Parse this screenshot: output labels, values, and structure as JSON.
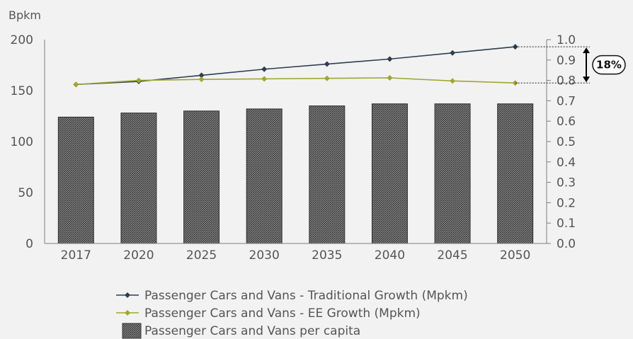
{
  "chart_data": {
    "type": "bar",
    "y_unit_label": "Bpkm",
    "categories": [
      "2017",
      "2020",
      "2025",
      "2030",
      "2035",
      "2040",
      "2045",
      "2050"
    ],
    "ylim": [
      0,
      200
    ],
    "y_ticks": [
      "0",
      "50",
      "100",
      "150",
      "200"
    ],
    "y2lim": [
      0,
      1.0
    ],
    "y2_ticks": [
      "0.0",
      "0.1",
      "0.2",
      "0.3",
      "0.4",
      "0.5",
      "0.6",
      "0.7",
      "0.8",
      "0.9",
      "1.0"
    ],
    "grid": false,
    "legend_placement": "bottom",
    "bar_series": {
      "name": "Passenger Cars and Vans per capita",
      "axis": "right",
      "values": [
        0.62,
        0.64,
        0.65,
        0.66,
        0.675,
        0.685,
        0.685,
        0.685
      ]
    },
    "line_series": [
      {
        "name": "Passenger Cars and Vans - Traditional Growth (Mpkm)",
        "axis": "left",
        "color": "#2e3e4e",
        "values": [
          156,
          159,
          165,
          171,
          176,
          181,
          187,
          193
        ]
      },
      {
        "name": "Passenger Cars and Vans - EE Growth (Mpkm)",
        "axis": "left",
        "color": "#a0a632",
        "values": [
          156,
          160,
          161,
          161.5,
          162,
          162.5,
          159.5,
          157.5
        ]
      }
    ],
    "annotation": {
      "text": "18%",
      "from_series": 0,
      "to_series": 1,
      "at_category": "2050"
    }
  }
}
